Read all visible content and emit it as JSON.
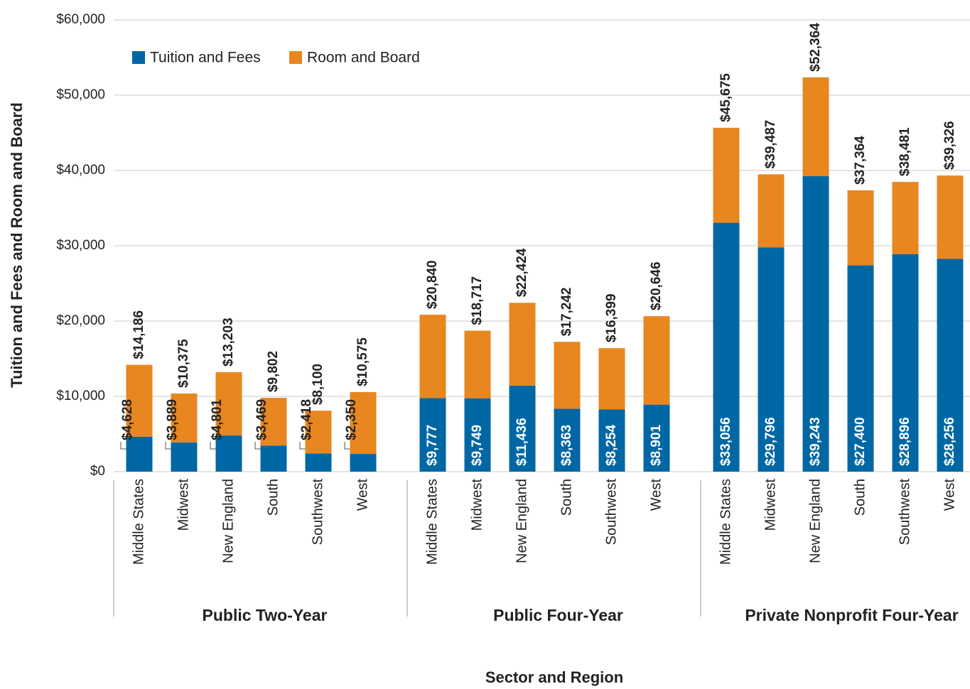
{
  "chart_data": {
    "type": "stacked_bar",
    "y_axis_label": "Tuition and Fees and Room and Board",
    "x_axis_label": "Sector and Region",
    "groups": [
      "Public Two-Year",
      "Public Four-Year",
      "Private Nonprofit Four-Year"
    ],
    "categories": [
      "Middle States",
      "Midwest",
      "New England",
      "South",
      "Southwest",
      "West",
      "Middle States",
      "Midwest",
      "New England",
      "South",
      "Southwest",
      "West",
      "Middle States",
      "Midwest",
      "New England",
      "South",
      "Southwest",
      "West"
    ],
    "series": [
      {
        "name": "Tuition and Fees",
        "color": "#0067a5",
        "values": [
          4628,
          3889,
          4801,
          3469,
          2418,
          2350,
          9777,
          9749,
          11436,
          8363,
          8254,
          8901,
          33056,
          29796,
          39243,
          27400,
          28896,
          28256
        ],
        "value_labels": [
          "$4,628",
          "$3,889",
          "$4,801",
          "$3,469",
          "$2,418",
          "$2,350",
          "$9,777",
          "$9,749",
          "$11,436",
          "$8,363",
          "$8,254",
          "$8,901",
          "$33,056",
          "$29,796",
          "$39,243",
          "$27,400",
          "$28,896",
          "$28,256"
        ]
      },
      {
        "name": "Room and Board",
        "color": "#e8861f",
        "values": [
          9558,
          6486,
          8402,
          6333,
          5682,
          8225,
          11063,
          8968,
          10988,
          8879,
          8145,
          11745,
          12619,
          9691,
          13121,
          9964,
          9585,
          11070
        ]
      }
    ],
    "totals": [
      14186,
      10375,
      13203,
      9802,
      8100,
      10575,
      20840,
      18717,
      22424,
      17242,
      16399,
      20646,
      45675,
      39487,
      52364,
      37364,
      38481,
      39326
    ],
    "total_labels": [
      "$14,186",
      "$10,375",
      "$13,203",
      "$9,802",
      "$8,100",
      "$10,575",
      "$20,840",
      "$18,717",
      "$22,424",
      "$17,242",
      "$16,399",
      "$20,646",
      "$45,675",
      "$39,487",
      "$52,364",
      "$37,364",
      "$38,481",
      "$39,326"
    ],
    "ylim": [
      0,
      60000
    ],
    "yticks": [
      {
        "value": 0,
        "label": "$0"
      },
      {
        "value": 10000,
        "label": "$10,000"
      },
      {
        "value": 20000,
        "label": "$20,000"
      },
      {
        "value": 30000,
        "label": "$30,000"
      },
      {
        "value": 40000,
        "label": "$40,000"
      },
      {
        "value": 50000,
        "label": "$50,000"
      },
      {
        "value": 60000,
        "label": "$60,000"
      }
    ],
    "grid": true,
    "legend": "top-left"
  }
}
